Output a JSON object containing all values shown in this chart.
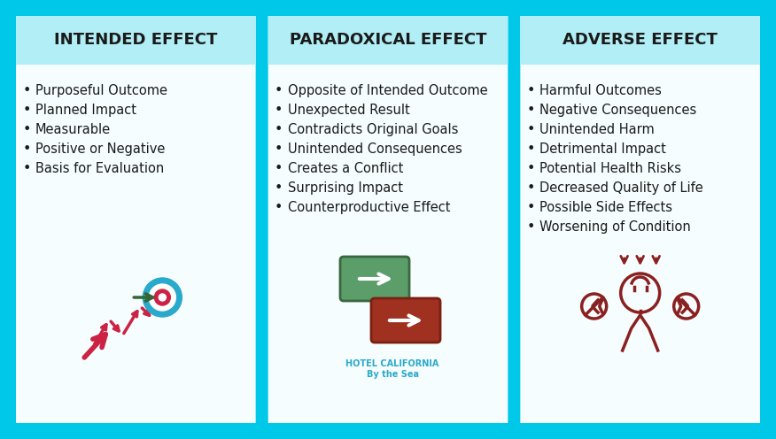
{
  "background_color": "#00C8E8",
  "header_bg_color": "#B2EEF5",
  "card_bg_color": "#F5FDFE",
  "header_text_color": "#1a1a1a",
  "bullet_text_color": "#1a1a1a",
  "columns": [
    {
      "title": "INTENDED EFFECT",
      "bullets": [
        "Purposeful Outcome",
        "Planned Impact",
        "Measurable",
        "Positive or Negative",
        "Basis for Evaluation"
      ]
    },
    {
      "title": "PARADOXICAL EFFECT",
      "bullets": [
        "Opposite of Intended Outcome",
        "Unexpected Result",
        "Contradicts Original Goals",
        "Unintended Consequences",
        "Creates a Conflict",
        "Surprising Impact",
        "Counterproductive Effect"
      ]
    },
    {
      "title": "ADVERSE EFFECT",
      "bullets": [
        "Harmful Outcomes",
        "Negative Consequences",
        "Unintended Harm",
        "Detrimental Impact",
        "Potential Health Risks",
        "Decreased Quality of Life",
        "Possible Side Effects",
        "Worsening of Condition"
      ]
    }
  ],
  "logo_text": "HOTEL CALIFORNIA\nBy the Sea",
  "title_fontsize": 13,
  "bullet_fontsize": 10.5,
  "logo_fontsize": 7
}
